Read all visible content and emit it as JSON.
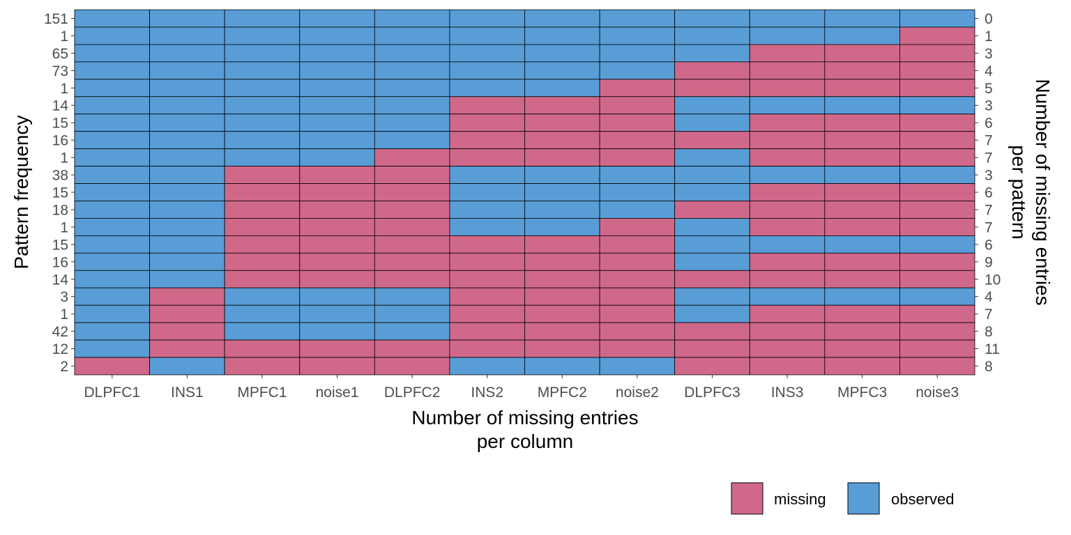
{
  "chart_data": {
    "type": "heatmap",
    "title": "",
    "xlabel": "Number of missing entries\nper column",
    "ylabel_left": "Pattern frequency",
    "ylabel_right": "Number of missing entries\nper pattern",
    "columns": [
      "DLPFC1",
      "INS1",
      "MPFC1",
      "noise1",
      "DLPFC2",
      "INS2",
      "MPFC2",
      "noise2",
      "DLPFC3",
      "INS3",
      "MPFC3",
      "noise3"
    ],
    "pattern_frequency": [
      151,
      1,
      65,
      73,
      1,
      14,
      15,
      16,
      1,
      38,
      15,
      18,
      1,
      15,
      16,
      14,
      3,
      1,
      42,
      12,
      2
    ],
    "missing_per_pattern": [
      0,
      1,
      3,
      4,
      5,
      3,
      6,
      7,
      7,
      3,
      6,
      7,
      7,
      6,
      9,
      10,
      4,
      7,
      8,
      11,
      8
    ],
    "patterns": [
      [
        0,
        0,
        0,
        0,
        0,
        0,
        0,
        0,
        0,
        0,
        0,
        0
      ],
      [
        0,
        0,
        0,
        0,
        0,
        0,
        0,
        0,
        0,
        0,
        0,
        1
      ],
      [
        0,
        0,
        0,
        0,
        0,
        0,
        0,
        0,
        0,
        1,
        1,
        1
      ],
      [
        0,
        0,
        0,
        0,
        0,
        0,
        0,
        0,
        1,
        1,
        1,
        1
      ],
      [
        0,
        0,
        0,
        0,
        0,
        0,
        0,
        1,
        1,
        1,
        1,
        1
      ],
      [
        0,
        0,
        0,
        0,
        0,
        1,
        1,
        1,
        0,
        0,
        0,
        0
      ],
      [
        0,
        0,
        0,
        0,
        0,
        1,
        1,
        1,
        0,
        1,
        1,
        1
      ],
      [
        0,
        0,
        0,
        0,
        0,
        1,
        1,
        1,
        1,
        1,
        1,
        1
      ],
      [
        0,
        0,
        0,
        0,
        1,
        1,
        1,
        1,
        0,
        1,
        1,
        1
      ],
      [
        0,
        0,
        1,
        1,
        1,
        0,
        0,
        0,
        0,
        0,
        0,
        0
      ],
      [
        0,
        0,
        1,
        1,
        1,
        0,
        0,
        0,
        0,
        1,
        1,
        1
      ],
      [
        0,
        0,
        1,
        1,
        1,
        0,
        0,
        0,
        1,
        1,
        1,
        1
      ],
      [
        0,
        0,
        1,
        1,
        1,
        0,
        0,
        1,
        0,
        1,
        1,
        1
      ],
      [
        0,
        0,
        1,
        1,
        1,
        1,
        1,
        1,
        0,
        0,
        0,
        0
      ],
      [
        0,
        0,
        1,
        1,
        1,
        1,
        1,
        1,
        0,
        1,
        1,
        1
      ],
      [
        0,
        0,
        1,
        1,
        1,
        1,
        1,
        1,
        1,
        1,
        1,
        1
      ],
      [
        0,
        1,
        0,
        0,
        0,
        1,
        1,
        1,
        0,
        0,
        0,
        0
      ],
      [
        0,
        1,
        0,
        0,
        0,
        1,
        1,
        1,
        0,
        1,
        1,
        1
      ],
      [
        0,
        1,
        0,
        0,
        0,
        1,
        1,
        1,
        1,
        1,
        1,
        1
      ],
      [
        0,
        1,
        1,
        1,
        1,
        1,
        1,
        1,
        1,
        1,
        1,
        1
      ],
      [
        1,
        0,
        1,
        1,
        1,
        0,
        0,
        0,
        1,
        1,
        1,
        1
      ]
    ],
    "legend": {
      "position": "bottom-right",
      "items": [
        {
          "key": "missing",
          "label": "missing",
          "color": "#d0688a"
        },
        {
          "key": "observed",
          "label": "observed",
          "color": "#589dd6"
        }
      ]
    },
    "grid": false
  }
}
